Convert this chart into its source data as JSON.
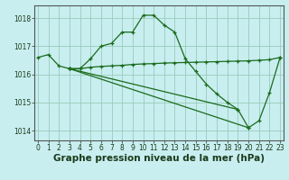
{
  "series": [
    {
      "x": [
        0,
        1,
        2,
        3,
        4,
        5,
        6,
        7,
        8,
        9,
        10,
        11,
        12,
        13,
        14,
        15,
        16,
        17,
        18,
        19,
        20,
        21,
        22,
        23
      ],
      "y": [
        1016.6,
        1016.7,
        1016.3,
        1016.2,
        1016.2,
        1016.55,
        1017.0,
        1017.1,
        1017.5,
        1017.5,
        1018.1,
        1018.1,
        1017.75,
        1017.5,
        1016.55,
        1016.1,
        1015.65,
        1015.3,
        1015.0,
        1014.75,
        1014.1,
        1014.35,
        1015.35,
        1016.6
      ]
    },
    {
      "x": [
        3,
        4,
        5,
        6,
        7,
        8,
        9,
        10,
        11,
        12,
        13,
        14,
        15,
        16,
        17,
        18,
        19,
        20,
        21,
        22,
        23
      ],
      "y": [
        1016.2,
        1016.2,
        1016.25,
        1016.28,
        1016.3,
        1016.32,
        1016.35,
        1016.37,
        1016.38,
        1016.4,
        1016.41,
        1016.42,
        1016.43,
        1016.44,
        1016.45,
        1016.46,
        1016.47,
        1016.48,
        1016.5,
        1016.52,
        1016.6
      ]
    },
    {
      "x": [
        3,
        19
      ],
      "y": [
        1016.2,
        1014.75
      ]
    },
    {
      "x": [
        3,
        20
      ],
      "y": [
        1016.2,
        1014.1
      ]
    }
  ],
  "xlim": [
    -0.3,
    23.3
  ],
  "ylim": [
    1013.65,
    1018.45
  ],
  "yticks": [
    1014,
    1015,
    1016,
    1017,
    1018
  ],
  "xticks": [
    0,
    1,
    2,
    3,
    4,
    5,
    6,
    7,
    8,
    9,
    10,
    11,
    12,
    13,
    14,
    15,
    16,
    17,
    18,
    19,
    20,
    21,
    22,
    23
  ],
  "xlabel": "Graphe pression niveau de la mer (hPa)",
  "bg_color": "#c8eef0",
  "grid_color": "#98ccb8",
  "line_color": "#1a6b1a",
  "spine_color": "#555555",
  "label_color": "#1a3a1a",
  "tick_fontsize": 5.5,
  "xlabel_fontsize": 7.5
}
